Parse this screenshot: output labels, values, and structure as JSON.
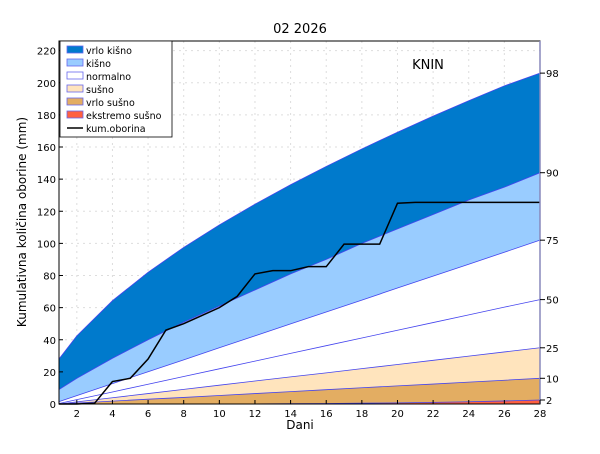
{
  "chart_data": {
    "type": "area",
    "title": "02 2026",
    "station": "KNIN",
    "xlabel": "Dani",
    "ylabel": "Kumulativna količina oborine (mm)",
    "xlim": [
      1,
      28
    ],
    "ylim": [
      0,
      225
    ],
    "xticks": [
      2,
      4,
      6,
      8,
      10,
      12,
      14,
      16,
      18,
      20,
      22,
      24,
      26,
      28
    ],
    "yticks": [
      0,
      20,
      40,
      60,
      80,
      100,
      120,
      140,
      160,
      180,
      200,
      220
    ],
    "grid": true,
    "legend_placement": "top-left",
    "days": [
      1,
      2,
      4,
      6,
      8,
      10,
      12,
      14,
      16,
      18,
      20,
      22,
      24,
      26,
      28
    ],
    "percentiles": [
      {
        "p": "98",
        "values": [
          28,
          42.4,
          64.3,
          82,
          97.5,
          111.5,
          124.4,
          136.5,
          147.9,
          158.8,
          169.2,
          179.2,
          188.8,
          198.1,
          206
        ]
      },
      {
        "p": "90",
        "values": [
          9,
          16,
          28.5,
          40,
          51,
          61,
          71,
          81,
          90,
          100,
          109,
          118,
          127,
          135,
          144
        ]
      },
      {
        "p": "75",
        "values": [
          1.5,
          5.2,
          12.7,
          20.1,
          27.5,
          35,
          42.4,
          49.9,
          57.3,
          64.7,
          72.2,
          79.6,
          87,
          94.5,
          102
        ]
      },
      {
        "p": "50",
        "values": [
          0.3,
          2.7,
          7.5,
          12.3,
          17.1,
          21.9,
          26.7,
          31.5,
          36.3,
          41.1,
          45.9,
          50.7,
          55.5,
          60.3,
          65
        ]
      },
      {
        "p": "25",
        "values": [
          0,
          1.3,
          3.9,
          6.5,
          9.1,
          11.7,
          14.3,
          16.9,
          19.4,
          22,
          24.6,
          27.2,
          29.8,
          32.4,
          35
        ]
      },
      {
        "p": "10",
        "values": [
          0,
          0.6,
          1.8,
          3,
          4.1,
          5.3,
          6.5,
          7.7,
          8.9,
          10.1,
          11.3,
          12.4,
          13.6,
          14.8,
          16
        ]
      },
      {
        "p": "2",
        "values": [
          0,
          0,
          0,
          0,
          0,
          0,
          0.1,
          0.2,
          0.3,
          0.5,
          0.7,
          1,
          1.4,
          1.9,
          2.5
        ]
      }
    ],
    "bands": [
      {
        "name": "vrlo kišno",
        "from": "90",
        "to": "98",
        "color": "#007acc"
      },
      {
        "name": "kišno",
        "from": "75",
        "to": "90",
        "color": "#99ccff"
      },
      {
        "name": "normalno",
        "from": "25",
        "to": "75",
        "color": "#ffffff"
      },
      {
        "name": "sušno",
        "from": "10",
        "to": "25",
        "color": "#ffe4bd"
      },
      {
        "name": "vrlo sušno",
        "from": "2",
        "to": "10",
        "color": "#e3ad62"
      },
      {
        "name": "ekstremo sušno",
        "from": "0",
        "to": "2",
        "color": "#ff6040"
      }
    ],
    "series": [
      {
        "name": "kum.oborina",
        "color": "#000000",
        "x": [
          1,
          2,
          3,
          4,
          5,
          6,
          7,
          8,
          9,
          10,
          11,
          12,
          13,
          14,
          15,
          16,
          17,
          18,
          19,
          20,
          21,
          22,
          23,
          24,
          25,
          26,
          27,
          28
        ],
        "y": [
          0,
          0,
          0.5,
          14,
          16,
          28,
          46,
          50,
          55,
          60,
          67,
          81,
          83,
          83,
          85.5,
          85.5,
          99.5,
          99.5,
          99.5,
          125,
          125.5,
          125.5,
          125.5,
          125.5,
          125.5,
          125.5,
          125.5,
          125.5
        ]
      }
    ]
  }
}
